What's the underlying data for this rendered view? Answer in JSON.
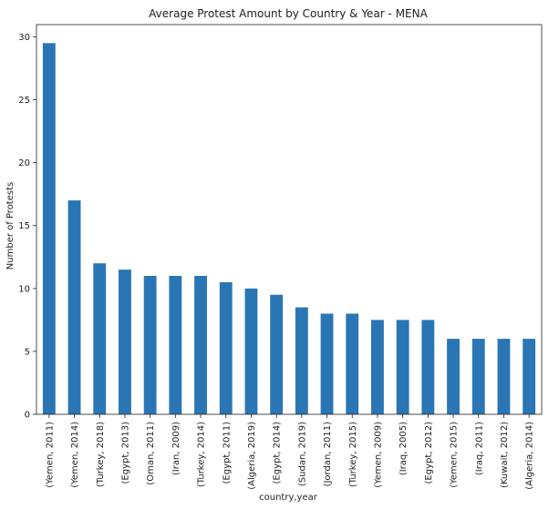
{
  "chart_data": {
    "type": "bar",
    "title": "Average Protest Amount by Country & Year - MENA",
    "xlabel": "country,year",
    "ylabel": "Number of Protests",
    "categories": [
      "(Yemen, 2011)",
      "(Yemen, 2014)",
      "(Turkey, 2018)",
      "(Egypt, 2013)",
      "(Oman, 2011)",
      "(Iran, 2009)",
      "(Turkey, 2014)",
      "(Egypt, 2011)",
      "(Algeria, 2019)",
      "(Egypt, 2014)",
      "(Sudan, 2019)",
      "(Jordan, 2011)",
      "(Turkey, 2015)",
      "(Yemen, 2009)",
      "(Iraq, 2005)",
      "(Egypt, 2012)",
      "(Yemen, 2015)",
      "(Iraq, 2011)",
      "(Kuwait, 2012)",
      "(Algeria, 2014)"
    ],
    "values": [
      29.5,
      17,
      12,
      11.5,
      11,
      11,
      11,
      10.5,
      10,
      9.5,
      8.5,
      8,
      8,
      7.5,
      7.5,
      7.5,
      6,
      6,
      6,
      6
    ],
    "yticks": [
      0,
      5,
      10,
      15,
      20,
      25,
      30
    ],
    "ylim": [
      0,
      30.975
    ],
    "bar_color": "#2a76b4",
    "grid": false,
    "legend": "none"
  }
}
